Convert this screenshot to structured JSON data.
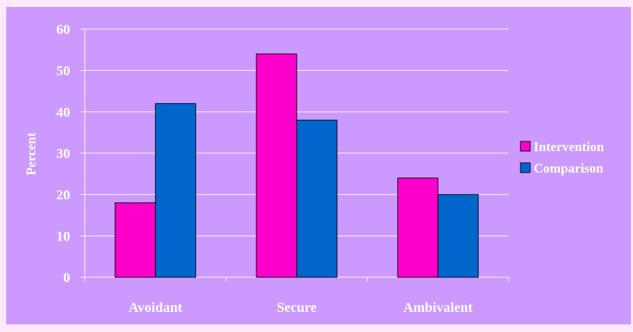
{
  "colors": {
    "page_border": "#fde9fb",
    "plot_background": "#cc99ff",
    "gridline": "#ffffff",
    "bar_outline": "#000000",
    "text": "#ffffff"
  },
  "chart_data": {
    "type": "bar",
    "categories": [
      "Avoidant",
      "Secure",
      "Ambivalent"
    ],
    "series": [
      {
        "name": "Intervention",
        "color": "#ff00cc",
        "values": [
          18,
          54,
          24
        ]
      },
      {
        "name": "Comparison",
        "color": "#0066cc",
        "values": [
          42,
          38,
          20
        ]
      }
    ],
    "xlabel": "",
    "ylabel": "Percent",
    "ylim": [
      0,
      60
    ],
    "yticks": [
      0,
      10,
      20,
      30,
      40,
      50,
      60
    ],
    "grid": true,
    "legend_position": "right"
  }
}
